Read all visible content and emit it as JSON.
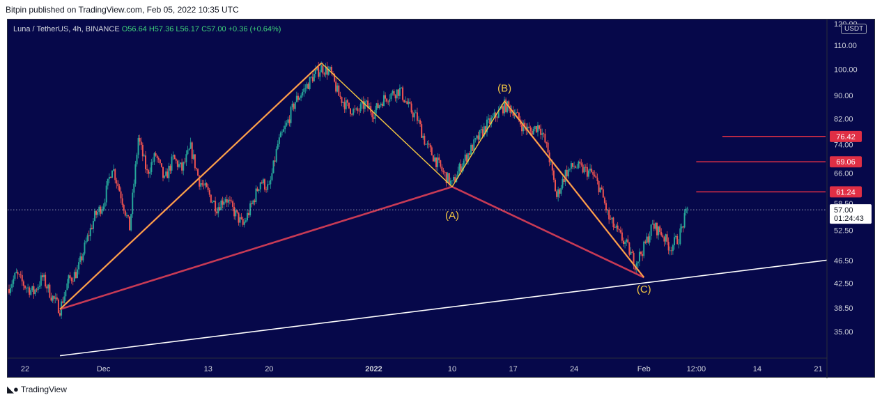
{
  "header": {
    "publish_line": "Bitpin published on TradingView.com, Feb 05, 2022 10:35 UTC"
  },
  "footer": {
    "brand": "TradingView",
    "logo_icon": "tradingview-logo-icon"
  },
  "legend": {
    "symbol": "Luna / TetherUS, 4h, BINANCE",
    "ohlc": "O56.64  H57.36  L56.17  C57.00  +0.36 (+0.64%)"
  },
  "colors": {
    "background": "#06084a",
    "bull": "#26a69a",
    "bear": "#ef5350",
    "wave": "#f5c842",
    "abc": "#c83a55",
    "level": "#e02f45",
    "trendline": "#ffffff"
  },
  "chart_data": {
    "type": "candlestick",
    "symbol": "Luna / TetherUS",
    "interval": "4h",
    "exchange": "BINANCE",
    "currency": "USDT",
    "y_scale": "log",
    "ylim": [
      31.5,
      122
    ],
    "y_ticks": [
      35.0,
      38.5,
      42.5,
      46.5,
      52.5,
      58.5,
      66.0,
      74.0,
      82.0,
      90.0,
      100.0,
      110.0,
      120.0
    ],
    "y_tick_labels": [
      "35.00",
      "38.50",
      "42.50",
      "46.50",
      "52.50",
      "58.50",
      "66.00",
      "74.00",
      "82.00",
      "90.00",
      "100.00",
      "110.00",
      "120.00"
    ],
    "x_range": [
      "2021-11-20",
      "2022-02-22"
    ],
    "x_ticks": [
      {
        "date": "2021-11-22",
        "label": "22"
      },
      {
        "date": "2021-12-01",
        "label": "Dec"
      },
      {
        "date": "2021-12-13",
        "label": "13"
      },
      {
        "date": "2021-12-20",
        "label": "20"
      },
      {
        "date": "2022-01-01",
        "label": "2022"
      },
      {
        "date": "2022-01-10",
        "label": "10"
      },
      {
        "date": "2022-01-17",
        "label": "17"
      },
      {
        "date": "2022-01-24",
        "label": "24"
      },
      {
        "date": "2022-02-01",
        "label": "Feb"
      },
      {
        "date": "2022-02-07",
        "label": "12:00"
      },
      {
        "date": "2022-02-14",
        "label": "14"
      },
      {
        "date": "2022-02-21",
        "label": "21"
      }
    ],
    "price_path": [
      {
        "date": "2021-11-20",
        "price": 41.5
      },
      {
        "date": "2021-11-21",
        "price": 44.0
      },
      {
        "date": "2021-11-22",
        "price": 42.0
      },
      {
        "date": "2021-11-23",
        "price": 41.0
      },
      {
        "date": "2021-11-24",
        "price": 43.5
      },
      {
        "date": "2021-11-25",
        "price": 40.5
      },
      {
        "date": "2021-11-26",
        "price": 38.3
      },
      {
        "date": "2021-11-27",
        "price": 43.0
      },
      {
        "date": "2021-11-28",
        "price": 44.5
      },
      {
        "date": "2021-11-29",
        "price": 50.0
      },
      {
        "date": "2021-11-30",
        "price": 55.5
      },
      {
        "date": "2021-12-01",
        "price": 58.5
      },
      {
        "date": "2021-12-02",
        "price": 68.0
      },
      {
        "date": "2021-12-03",
        "price": 60.5
      },
      {
        "date": "2021-12-04",
        "price": 53.0
      },
      {
        "date": "2021-12-05",
        "price": 76.0
      },
      {
        "date": "2021-12-06",
        "price": 66.0
      },
      {
        "date": "2021-12-07",
        "price": 71.0
      },
      {
        "date": "2021-12-08",
        "price": 64.0
      },
      {
        "date": "2021-12-09",
        "price": 70.0
      },
      {
        "date": "2021-12-10",
        "price": 67.0
      },
      {
        "date": "2021-12-11",
        "price": 73.0
      },
      {
        "date": "2021-12-12",
        "price": 64.0
      },
      {
        "date": "2021-12-13",
        "price": 61.0
      },
      {
        "date": "2021-12-14",
        "price": 57.5
      },
      {
        "date": "2021-12-15",
        "price": 60.0
      },
      {
        "date": "2021-12-16",
        "price": 56.5
      },
      {
        "date": "2021-12-17",
        "price": 53.5
      },
      {
        "date": "2021-12-18",
        "price": 58.0
      },
      {
        "date": "2021-12-19",
        "price": 64.0
      },
      {
        "date": "2021-12-20",
        "price": 62.0
      },
      {
        "date": "2021-12-21",
        "price": 74.0
      },
      {
        "date": "2021-12-22",
        "price": 80.0
      },
      {
        "date": "2021-12-23",
        "price": 88.0
      },
      {
        "date": "2021-12-24",
        "price": 92.0
      },
      {
        "date": "2021-12-25",
        "price": 97.0
      },
      {
        "date": "2021-12-26",
        "price": 100.5
      },
      {
        "date": "2021-12-27",
        "price": 99.0
      },
      {
        "date": "2021-12-28",
        "price": 90.0
      },
      {
        "date": "2021-12-29",
        "price": 86.0
      },
      {
        "date": "2021-12-30",
        "price": 84.0
      },
      {
        "date": "2021-12-31",
        "price": 87.0
      },
      {
        "date": "2022-01-01",
        "price": 84.0
      },
      {
        "date": "2022-01-02",
        "price": 88.5
      },
      {
        "date": "2022-01-03",
        "price": 90.5
      },
      {
        "date": "2022-01-04",
        "price": 92.0
      },
      {
        "date": "2022-01-05",
        "price": 86.0
      },
      {
        "date": "2022-01-06",
        "price": 82.0
      },
      {
        "date": "2022-01-07",
        "price": 74.0
      },
      {
        "date": "2022-01-08",
        "price": 70.0
      },
      {
        "date": "2022-01-09",
        "price": 66.0
      },
      {
        "date": "2022-01-10",
        "price": 63.0
      },
      {
        "date": "2022-01-11",
        "price": 68.0
      },
      {
        "date": "2022-01-12",
        "price": 72.0
      },
      {
        "date": "2022-01-13",
        "price": 76.0
      },
      {
        "date": "2022-01-14",
        "price": 80.0
      },
      {
        "date": "2022-01-15",
        "price": 83.0
      },
      {
        "date": "2022-01-16",
        "price": 86.5
      },
      {
        "date": "2022-01-17",
        "price": 85.0
      },
      {
        "date": "2022-01-18",
        "price": 80.0
      },
      {
        "date": "2022-01-19",
        "price": 78.0
      },
      {
        "date": "2022-01-20",
        "price": 80.0
      },
      {
        "date": "2022-01-21",
        "price": 72.0
      },
      {
        "date": "2022-01-22",
        "price": 60.0
      },
      {
        "date": "2022-01-23",
        "price": 66.0
      },
      {
        "date": "2022-01-24",
        "price": 68.0
      },
      {
        "date": "2022-01-25",
        "price": 67.0
      },
      {
        "date": "2022-01-26",
        "price": 66.0
      },
      {
        "date": "2022-01-27",
        "price": 62.0
      },
      {
        "date": "2022-01-28",
        "price": 55.0
      },
      {
        "date": "2022-01-29",
        "price": 52.0
      },
      {
        "date": "2022-01-30",
        "price": 49.5
      },
      {
        "date": "2022-01-31",
        "price": 46.0
      },
      {
        "date": "2022-02-01",
        "price": 49.0
      },
      {
        "date": "2022-02-02",
        "price": 53.5
      },
      {
        "date": "2022-02-03",
        "price": 52.0
      },
      {
        "date": "2022-02-04",
        "price": 49.0
      },
      {
        "date": "2022-02-05",
        "price": 51.0
      },
      {
        "date": "2022-02-06",
        "price": 57.0
      }
    ],
    "last_price": {
      "value": 57.0,
      "label": "57.00",
      "countdown": "01:24:43"
    },
    "wave_lines": [
      {
        "from": {
          "date": "2021-11-26",
          "price": 38.3
        },
        "to": {
          "date": "2021-12-26",
          "price": 102.5
        }
      },
      {
        "from": {
          "date": "2021-12-26",
          "price": 102.5
        },
        "to": {
          "date": "2022-01-10",
          "price": 62.5
        }
      },
      {
        "from": {
          "date": "2022-01-10",
          "price": 62.5
        },
        "to": {
          "date": "2022-01-16",
          "price": 88.0
        }
      },
      {
        "from": {
          "date": "2022-01-16",
          "price": 88.0
        },
        "to": {
          "date": "2022-02-01",
          "price": 43.5
        }
      }
    ],
    "abc_lines": [
      {
        "from": {
          "date": "2021-11-26",
          "price": 38.3
        },
        "to": {
          "date": "2021-12-26",
          "price": 102.5
        }
      },
      {
        "from": {
          "date": "2021-11-26",
          "price": 38.3
        },
        "to": {
          "date": "2022-01-10",
          "price": 62.5
        }
      },
      {
        "from": {
          "date": "2022-01-10",
          "price": 62.5
        },
        "to": {
          "date": "2022-02-01",
          "price": 43.5
        }
      },
      {
        "from": {
          "date": "2022-01-16",
          "price": 88.0
        },
        "to": {
          "date": "2022-02-01",
          "price": 43.5
        }
      }
    ],
    "trendline": {
      "from": {
        "date": "2021-11-26",
        "price": 31.8
      },
      "to": {
        "date": "2022-02-22",
        "price": 46.6
      }
    },
    "wave_labels": [
      {
        "text": "(A)",
        "date": "2022-01-10",
        "price": 58.5,
        "anchor": "below"
      },
      {
        "text": "(B)",
        "date": "2022-01-16",
        "price": 88.0,
        "anchor": "above"
      },
      {
        "text": "(C)",
        "date": "2022-02-01",
        "price": 43.5,
        "anchor": "below"
      }
    ],
    "levels": [
      {
        "value": 76.42,
        "label": "76.42",
        "from_date": "2022-02-10"
      },
      {
        "value": 69.06,
        "label": "69.06",
        "from_date": "2022-02-07"
      },
      {
        "value": 61.24,
        "label": "61.24",
        "from_date": "2022-02-07"
      }
    ]
  }
}
